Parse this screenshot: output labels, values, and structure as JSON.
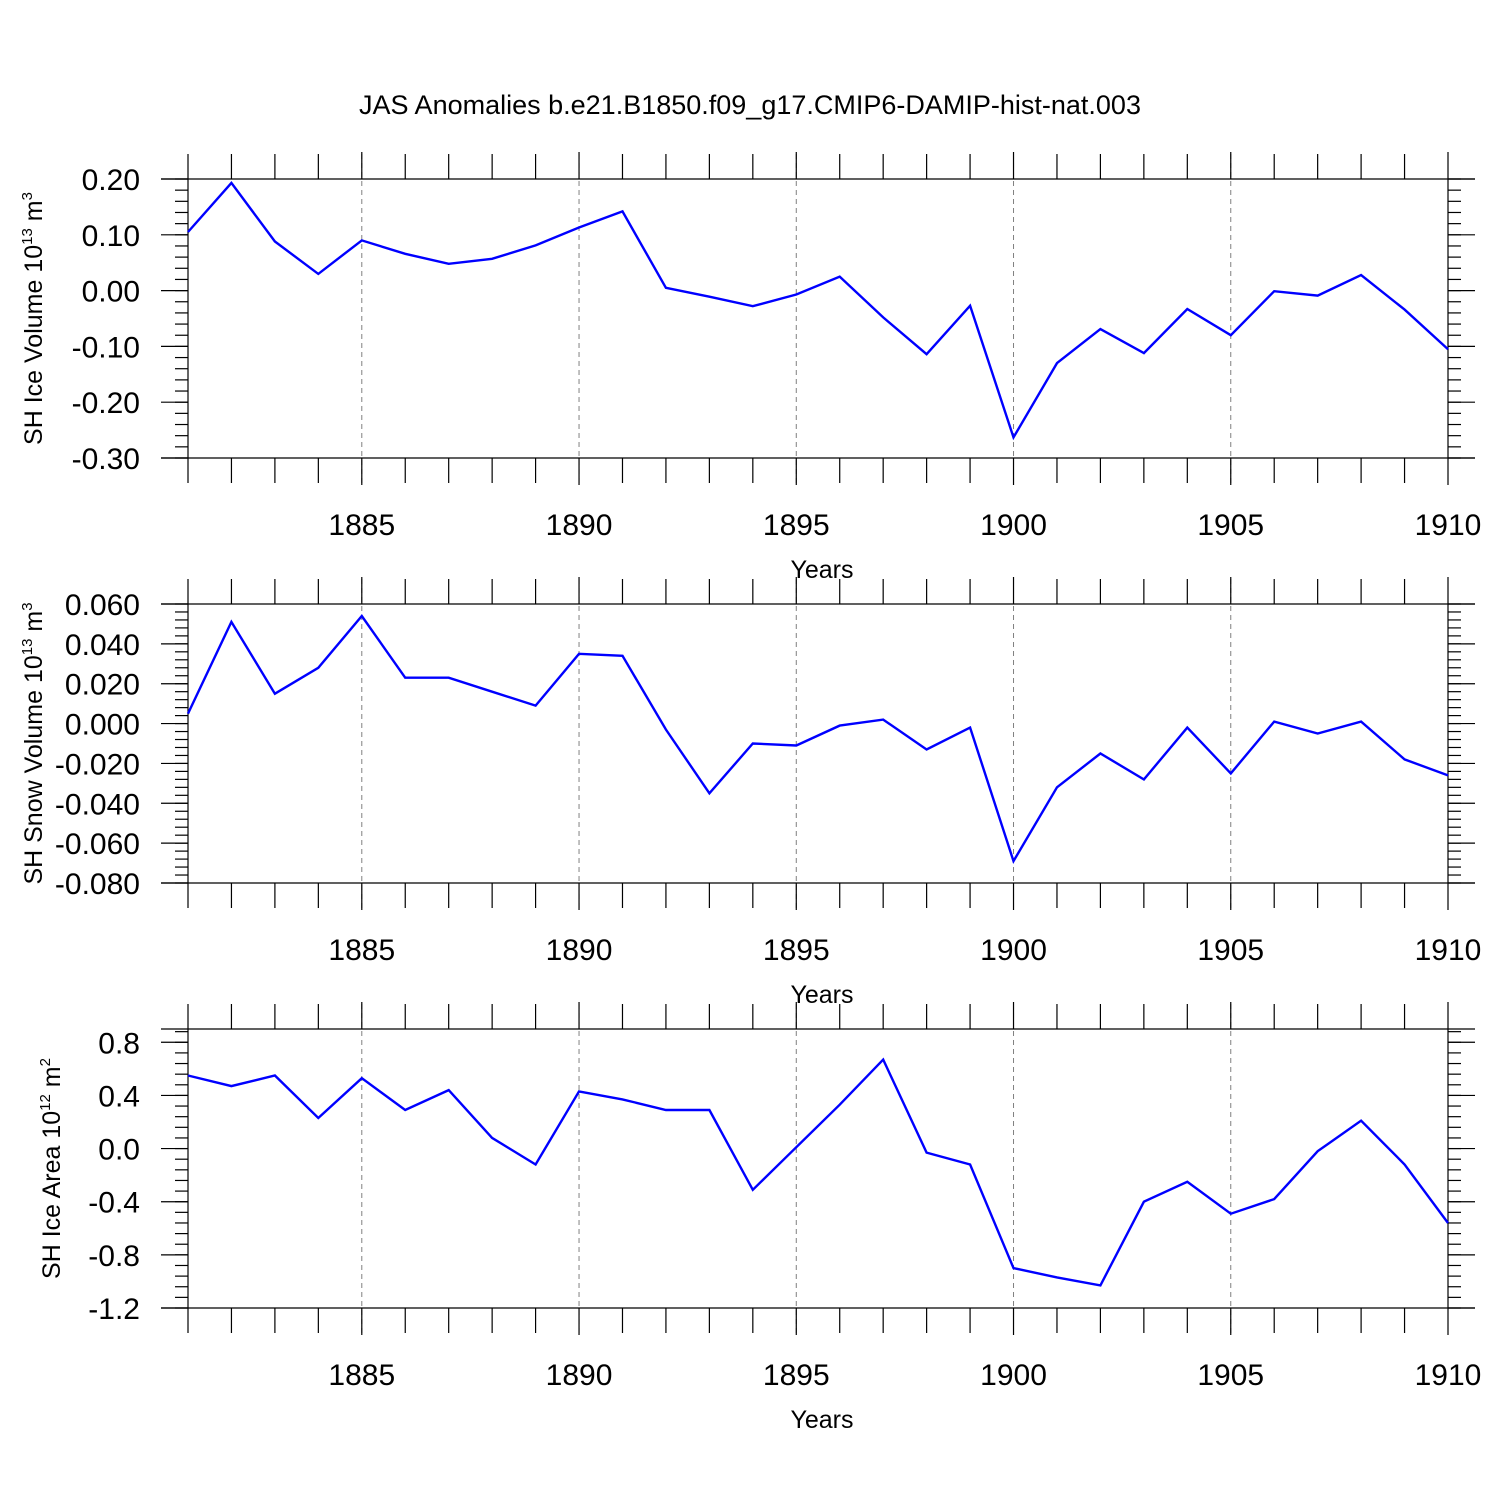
{
  "title": "JAS Anomalies b.e21.B1850.f09_g17.CMIP6-DAMIP-hist-nat.003",
  "chart_data": [
    {
      "type": "line",
      "xlabel": "Years",
      "ylabel": "SH Ice Volume 10",
      "ylabel_exp": "13",
      "ylabel_unit": " m",
      "ylabel_unit_exp": "3",
      "xlim": [
        1881,
        1910
      ],
      "ylim": [
        -0.3,
        0.2
      ],
      "xticks": [
        1885,
        1890,
        1895,
        1900,
        1905,
        1910
      ],
      "yticks": [
        "0.20",
        "0.10",
        "0.00",
        "-0.10",
        "-0.20",
        "-0.30"
      ],
      "ytick_values": [
        0.2,
        0.1,
        0.0,
        -0.1,
        -0.2,
        -0.3
      ],
      "yminor_step": 0.02,
      "x": [
        1881,
        1882,
        1883,
        1884,
        1885,
        1886,
        1887,
        1888,
        1889,
        1890,
        1891,
        1892,
        1893,
        1894,
        1895,
        1896,
        1897,
        1898,
        1899,
        1900,
        1901,
        1902,
        1903,
        1904,
        1905,
        1906,
        1907,
        1908,
        1909,
        1910
      ],
      "values": [
        0.105,
        0.193,
        0.088,
        0.03,
        0.09,
        0.066,
        0.048,
        0.057,
        0.081,
        0.113,
        0.142,
        0.005,
        -0.011,
        -0.028,
        -0.007,
        0.025,
        -0.048,
        -0.114,
        -0.027,
        -0.263,
        -0.13,
        -0.069,
        -0.112,
        -0.033,
        -0.08,
        -0.001,
        -0.009,
        0.028,
        -0.034,
        -0.105
      ]
    },
    {
      "type": "line",
      "xlabel": "Years",
      "ylabel": "SH Snow Volume 10",
      "ylabel_exp": "13",
      "ylabel_unit": " m",
      "ylabel_unit_exp": "3",
      "xlim": [
        1881,
        1910
      ],
      "ylim": [
        -0.08,
        0.06
      ],
      "xticks": [
        1885,
        1890,
        1895,
        1900,
        1905,
        1910
      ],
      "yticks": [
        "0.060",
        "0.040",
        "0.020",
        "0.000",
        "-0.020",
        "-0.040",
        "-0.060",
        "-0.080"
      ],
      "ytick_values": [
        0.06,
        0.04,
        0.02,
        0.0,
        -0.02,
        -0.04,
        -0.06,
        -0.08
      ],
      "yminor_step": 0.004,
      "x": [
        1881,
        1882,
        1883,
        1884,
        1885,
        1886,
        1887,
        1888,
        1889,
        1890,
        1891,
        1892,
        1893,
        1894,
        1895,
        1896,
        1897,
        1898,
        1899,
        1900,
        1901,
        1902,
        1903,
        1904,
        1905,
        1906,
        1907,
        1908,
        1909,
        1910
      ],
      "values": [
        0.005,
        0.051,
        0.015,
        0.028,
        0.054,
        0.023,
        0.023,
        0.016,
        0.009,
        0.035,
        0.034,
        -0.003,
        -0.035,
        -0.01,
        -0.011,
        -0.001,
        0.002,
        -0.013,
        -0.002,
        -0.069,
        -0.032,
        -0.015,
        -0.028,
        -0.002,
        -0.025,
        0.001,
        -0.005,
        0.001,
        -0.018,
        -0.026
      ]
    },
    {
      "type": "line",
      "xlabel": "Years",
      "ylabel": "SH Ice Area 10",
      "ylabel_exp": "12",
      "ylabel_unit": " m",
      "ylabel_unit_exp": "2",
      "xlim": [
        1881,
        1910
      ],
      "ylim": [
        -1.2,
        0.9
      ],
      "xticks": [
        1885,
        1890,
        1895,
        1900,
        1905,
        1910
      ],
      "yticks": [
        "0.8",
        "0.4",
        "0.0",
        "-0.4",
        "-0.8",
        "-1.2"
      ],
      "ytick_values": [
        0.8,
        0.4,
        0.0,
        -0.4,
        -0.8,
        -1.2
      ],
      "yminor_step": 0.08,
      "x": [
        1881,
        1882,
        1883,
        1884,
        1885,
        1886,
        1887,
        1888,
        1889,
        1890,
        1891,
        1892,
        1893,
        1894,
        1895,
        1896,
        1897,
        1898,
        1899,
        1900,
        1901,
        1902,
        1903,
        1904,
        1905,
        1906,
        1907,
        1908,
        1909,
        1910
      ],
      "values": [
        0.55,
        0.47,
        0.55,
        0.23,
        0.53,
        0.29,
        0.44,
        0.08,
        -0.12,
        0.43,
        0.37,
        0.29,
        0.29,
        -0.31,
        0.01,
        0.33,
        0.67,
        -0.03,
        -0.12,
        -0.9,
        -0.97,
        -1.03,
        -0.4,
        -0.25,
        -0.49,
        -0.38,
        -0.02,
        0.21,
        -0.12,
        -0.56
      ]
    }
  ]
}
